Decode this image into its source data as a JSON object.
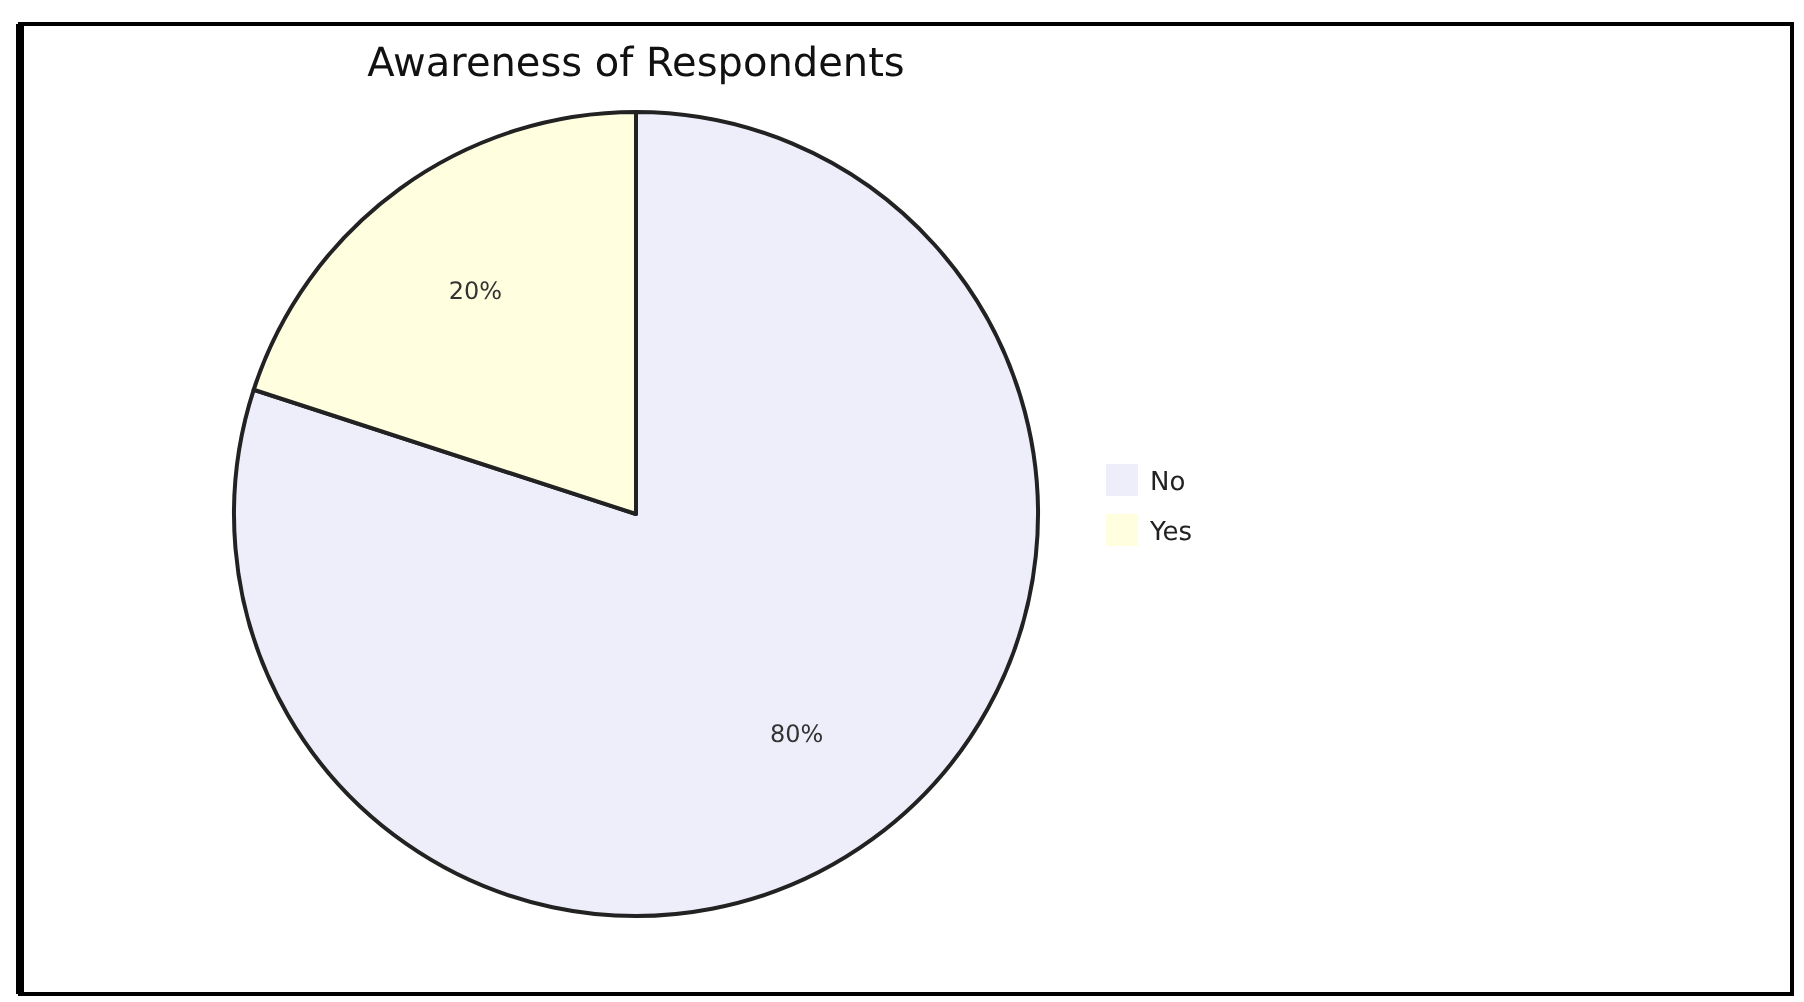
{
  "chart_data": {
    "type": "pie",
    "title": "Awareness of Respondents",
    "categories": [
      "No",
      "Yes"
    ],
    "values": [
      80,
      20
    ],
    "colors": [
      "#eeeefa",
      "#ffffe0"
    ],
    "value_labels": [
      "80%",
      "20%"
    ],
    "legend": "right"
  }
}
